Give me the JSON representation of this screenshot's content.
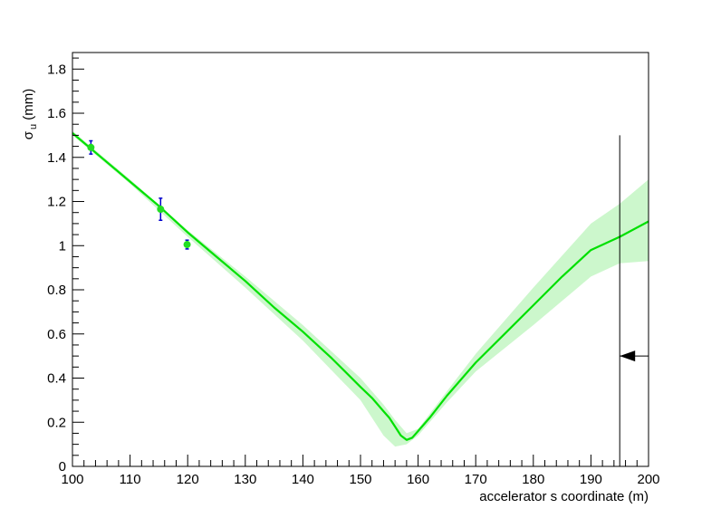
{
  "chart_data": {
    "type": "line",
    "xlabel": "accelerator s coordinate (m)",
    "ylabel_main": "σ",
    "ylabel_sub": "u",
    "ylabel_unit": " (mm)",
    "xlim": [
      100,
      200
    ],
    "ylim": [
      0,
      1.875
    ],
    "x_ticks": [
      100,
      110,
      120,
      130,
      140,
      150,
      160,
      170,
      180,
      190,
      200
    ],
    "x_tick_labels": [
      "100",
      "110",
      "120",
      "130",
      "140",
      "150",
      "160",
      "170",
      "180",
      "190",
      "200"
    ],
    "y_ticks": [
      0,
      0.2,
      0.4,
      0.6,
      0.8,
      1,
      1.2,
      1.4,
      1.6,
      1.8
    ],
    "y_tick_labels": [
      "0",
      "0.2",
      "0.4",
      "0.6",
      "0.8",
      "1",
      "1.2",
      "1.4",
      "1.6",
      "1.8"
    ],
    "grid": false,
    "colors": {
      "fit_line": "#00e000",
      "band": "#ccf7cc",
      "points": "#22dd22",
      "errorbars": "#0000cc",
      "marker_line": "#000000"
    },
    "fit_curve": {
      "x": [
        100,
        105,
        110,
        115,
        120,
        125,
        130,
        135,
        140,
        145,
        150,
        152,
        154,
        155,
        156,
        157,
        158,
        159,
        160,
        162,
        165,
        170,
        175,
        180,
        185,
        190,
        195,
        200
      ],
      "y": [
        1.51,
        1.4,
        1.29,
        1.18,
        1.06,
        0.95,
        0.84,
        0.72,
        0.61,
        0.49,
        0.36,
        0.31,
        0.25,
        0.22,
        0.18,
        0.14,
        0.12,
        0.13,
        0.16,
        0.22,
        0.32,
        0.47,
        0.6,
        0.73,
        0.86,
        0.98,
        1.04,
        1.11
      ]
    },
    "band_upper": {
      "x": [
        100,
        110,
        120,
        130,
        140,
        150,
        154,
        156,
        158,
        160,
        165,
        170,
        180,
        190,
        195,
        200
      ],
      "y": [
        1.52,
        1.3,
        1.07,
        0.86,
        0.64,
        0.4,
        0.28,
        0.21,
        0.15,
        0.17,
        0.34,
        0.51,
        0.81,
        1.1,
        1.19,
        1.3
      ]
    },
    "band_lower": {
      "x": [
        100,
        110,
        120,
        130,
        140,
        150,
        152,
        154,
        156,
        158,
        160,
        165,
        170,
        180,
        190,
        195,
        200
      ],
      "y": [
        1.5,
        1.28,
        1.04,
        0.81,
        0.57,
        0.3,
        0.22,
        0.14,
        0.09,
        0.1,
        0.14,
        0.29,
        0.43,
        0.64,
        0.86,
        0.92,
        0.93
      ]
    },
    "points": [
      {
        "x": 103.2,
        "y": 1.445,
        "err": 0.03
      },
      {
        "x": 115.3,
        "y": 1.165,
        "err": 0.05
      },
      {
        "x": 119.9,
        "y": 1.005,
        "err": 0.02
      }
    ],
    "marker": {
      "x": 195,
      "y_top": 1.5,
      "arrow_y": 0.5
    }
  }
}
